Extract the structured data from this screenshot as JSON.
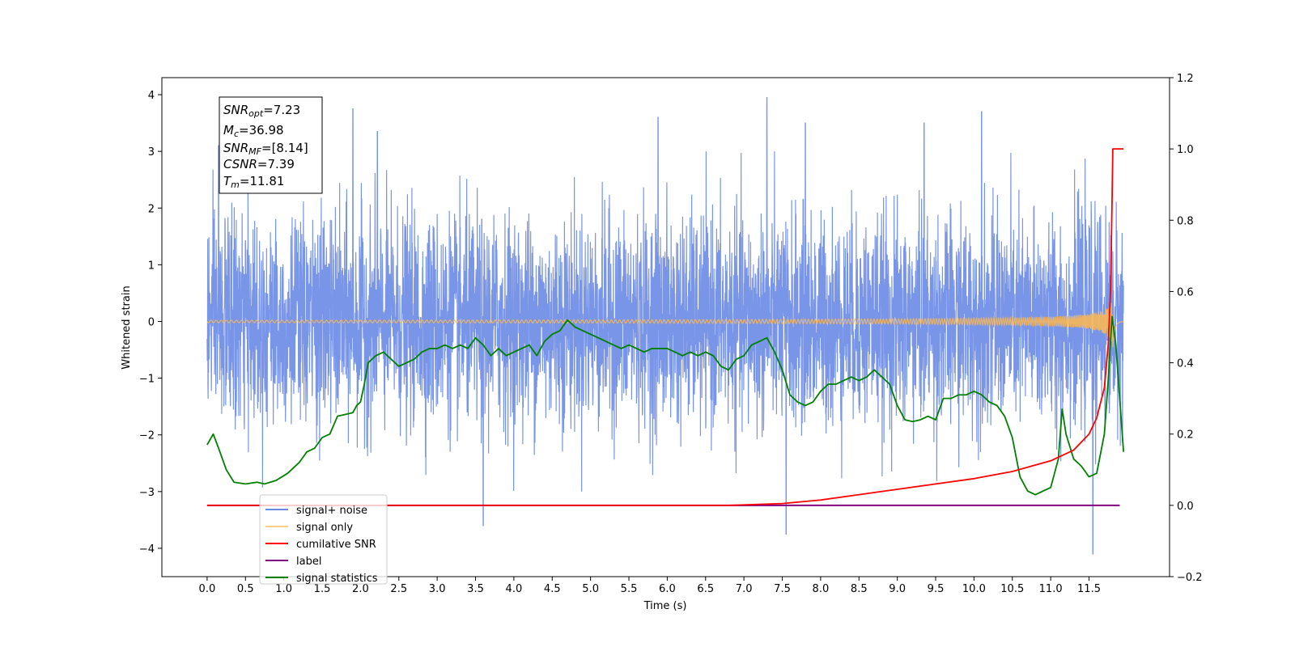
{
  "chart_data": {
    "type": "line",
    "xlabel": "Time (s)",
    "ylabel": "Whitened strain",
    "xlim": [
      -0.59,
      12.55
    ],
    "ylim_left": [
      -4.5,
      4.3
    ],
    "ylim_right": [
      -0.2,
      1.2
    ],
    "x_ticks": [
      0.0,
      0.5,
      1.0,
      1.5,
      2.0,
      2.5,
      3.0,
      3.5,
      4.0,
      4.5,
      5.0,
      5.5,
      6.0,
      6.5,
      7.0,
      7.5,
      8.0,
      8.5,
      9.0,
      9.5,
      10.0,
      10.5,
      11.0,
      11.5
    ],
    "x_tick_labels": [
      "0.0",
      "0.5",
      "1.0",
      "1.5",
      "2.0",
      "2.5",
      "3.0",
      "3.5",
      "4.0",
      "4.5",
      "5.0",
      "5.5",
      "6.0",
      "6.5",
      "7.0",
      "7.5",
      "8.0",
      "8.5",
      "9.0",
      "9.5",
      "10.0",
      "10.5",
      "11.0",
      "11.5"
    ],
    "y_ticks_left": [
      -4,
      -3,
      -2,
      -1,
      0,
      1,
      2,
      3,
      4
    ],
    "y_tick_labels_left": [
      "−4",
      "−3",
      "−2",
      "−1",
      "0",
      "1",
      "2",
      "3",
      "4"
    ],
    "y_ticks_right": [
      -0.2,
      0.0,
      0.2,
      0.4,
      0.6,
      0.8,
      1.0,
      1.2
    ],
    "y_tick_labels_right": [
      "−0.2",
      "0.0",
      "0.2",
      "0.4",
      "0.6",
      "0.8",
      "1.0",
      "1.2"
    ],
    "annotation": {
      "snr_opt": "=7.23",
      "mc": "=36.98",
      "snr_mf": "=[8.14]",
      "csnr": "=7.39",
      "tm": "=11.81"
    },
    "legend_position": "lower-left",
    "series": [
      {
        "name": "signal+ noise",
        "axis": "left",
        "color": "#6a8ae6",
        "description_of_values": "white noise, roughly ±2 with spikes up to 3.9 and down to -4.1",
        "x_range": [
          0.0,
          11.95
        ],
        "peak_spikes": [
          [
            0.15,
            3.1
          ],
          [
            1.9,
            3.75
          ],
          [
            2.22,
            3.35
          ],
          [
            5.88,
            3.6
          ],
          [
            7.3,
            3.95
          ],
          [
            7.8,
            3.5
          ],
          [
            9.35,
            3.5
          ],
          [
            10.1,
            3.7
          ],
          [
            11.55,
            -4.1
          ],
          [
            7.55,
            -3.75
          ],
          [
            3.6,
            -3.6
          ]
        ]
      },
      {
        "name": "signal only",
        "axis": "left",
        "color": "#ffb84d",
        "description_of_values": "chirp at 0, growing amplitude near merger",
        "x_range": [
          0.0,
          11.95
        ],
        "merger_time": 11.81,
        "peak_amplitude": 0.55
      },
      {
        "name": "cumilative SNR",
        "axis": "right",
        "x": [
          0.0,
          6.8,
          7.5,
          8.0,
          8.5,
          9.0,
          9.5,
          10.0,
          10.5,
          11.0,
          11.3,
          11.5,
          11.6,
          11.7,
          11.75,
          11.78,
          11.8,
          11.81,
          11.95
        ],
        "y": [
          0.0,
          0.0,
          0.005,
          0.015,
          0.03,
          0.045,
          0.06,
          0.075,
          0.095,
          0.125,
          0.155,
          0.2,
          0.245,
          0.33,
          0.45,
          0.6,
          0.85,
          1.0,
          1.0
        ],
        "color": "#ff0000"
      },
      {
        "name": "label",
        "axis": "right",
        "x": [
          0.0,
          11.9
        ],
        "y": [
          0.0,
          0.0
        ],
        "color": "#800080"
      },
      {
        "name": "signal statistics",
        "axis": "right",
        "color": "#008000",
        "x": [
          0.0,
          0.08,
          0.15,
          0.25,
          0.35,
          0.5,
          0.65,
          0.75,
          0.9,
          1.05,
          1.2,
          1.3,
          1.4,
          1.5,
          1.6,
          1.7,
          1.8,
          1.9,
          1.95,
          2.0,
          2.05,
          2.1,
          2.2,
          2.3,
          2.4,
          2.5,
          2.6,
          2.7,
          2.8,
          2.9,
          3.0,
          3.1,
          3.2,
          3.3,
          3.4,
          3.5,
          3.6,
          3.7,
          3.8,
          3.9,
          4.0,
          4.1,
          4.2,
          4.3,
          4.4,
          4.5,
          4.6,
          4.7,
          4.8,
          4.9,
          5.0,
          5.1,
          5.2,
          5.3,
          5.4,
          5.5,
          5.6,
          5.7,
          5.8,
          5.9,
          6.0,
          6.1,
          6.2,
          6.3,
          6.4,
          6.5,
          6.6,
          6.7,
          6.8,
          6.9,
          7.0,
          7.1,
          7.2,
          7.3,
          7.4,
          7.5,
          7.6,
          7.7,
          7.8,
          7.9,
          8.0,
          8.1,
          8.2,
          8.3,
          8.4,
          8.5,
          8.6,
          8.7,
          8.8,
          8.9,
          9.0,
          9.1,
          9.2,
          9.3,
          9.4,
          9.5,
          9.6,
          9.7,
          9.8,
          9.9,
          10.0,
          10.1,
          10.2,
          10.3,
          10.4,
          10.5,
          10.6,
          10.7,
          10.8,
          10.9,
          11.0,
          11.05,
          11.1,
          11.15,
          11.2,
          11.3,
          11.4,
          11.5,
          11.6,
          11.7,
          11.75,
          11.8,
          11.85,
          11.9,
          11.95
        ],
        "y": [
          0.17,
          0.2,
          0.16,
          0.1,
          0.065,
          0.06,
          0.065,
          0.06,
          0.07,
          0.09,
          0.12,
          0.15,
          0.16,
          0.19,
          0.2,
          0.25,
          0.255,
          0.26,
          0.28,
          0.29,
          0.34,
          0.4,
          0.42,
          0.43,
          0.41,
          0.39,
          0.4,
          0.41,
          0.43,
          0.44,
          0.44,
          0.45,
          0.44,
          0.45,
          0.44,
          0.47,
          0.45,
          0.42,
          0.44,
          0.42,
          0.43,
          0.44,
          0.45,
          0.42,
          0.46,
          0.48,
          0.49,
          0.52,
          0.5,
          0.49,
          0.48,
          0.47,
          0.46,
          0.45,
          0.44,
          0.45,
          0.44,
          0.43,
          0.44,
          0.44,
          0.44,
          0.43,
          0.42,
          0.43,
          0.42,
          0.43,
          0.42,
          0.39,
          0.38,
          0.41,
          0.42,
          0.45,
          0.46,
          0.47,
          0.43,
          0.38,
          0.31,
          0.29,
          0.28,
          0.29,
          0.32,
          0.34,
          0.34,
          0.35,
          0.36,
          0.35,
          0.36,
          0.38,
          0.36,
          0.34,
          0.28,
          0.24,
          0.235,
          0.24,
          0.25,
          0.24,
          0.3,
          0.3,
          0.31,
          0.31,
          0.32,
          0.31,
          0.29,
          0.28,
          0.25,
          0.19,
          0.08,
          0.04,
          0.03,
          0.04,
          0.05,
          0.09,
          0.13,
          0.27,
          0.2,
          0.13,
          0.11,
          0.08,
          0.09,
          0.2,
          0.35,
          0.53,
          0.45,
          0.3,
          0.15
        ]
      }
    ]
  }
}
